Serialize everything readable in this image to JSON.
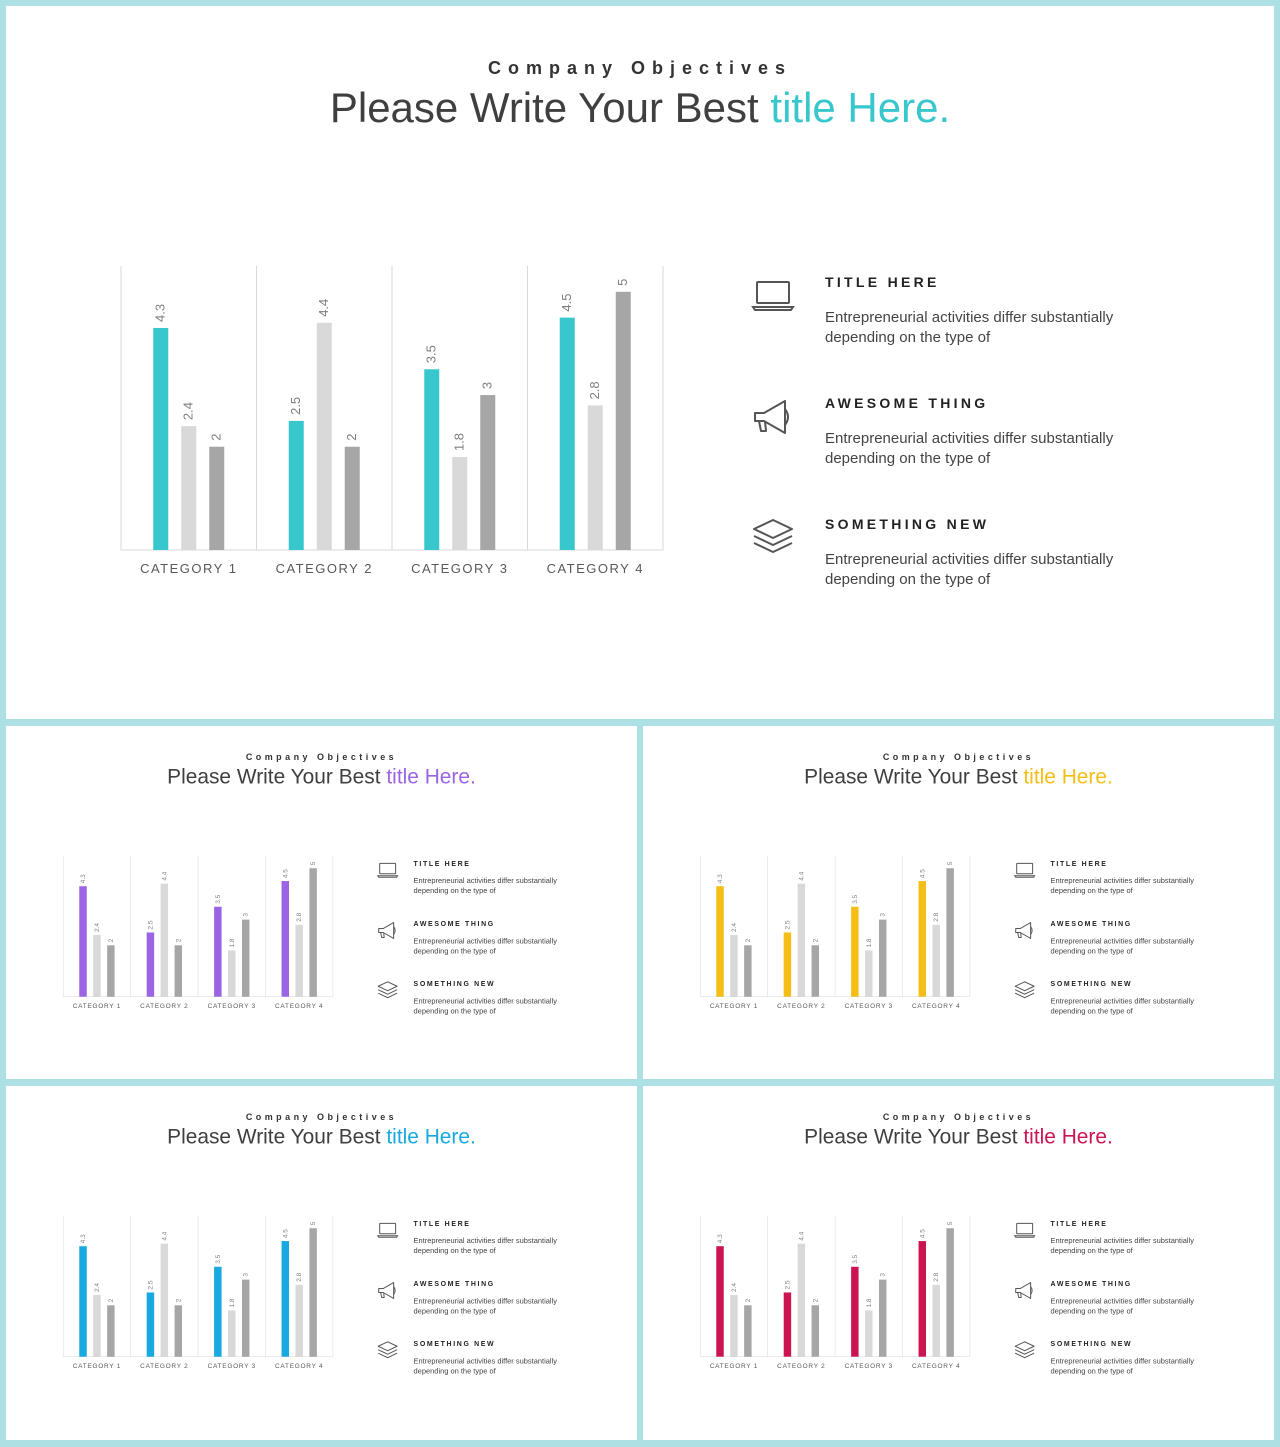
{
  "slides": [
    {
      "subtitle": "Company Objectives",
      "title_main": "Please Write Your Best",
      "title_accent": "title Here.",
      "accent_color": "#38c7cd"
    },
    {
      "subtitle": "Company Objectives",
      "title_main": "Please Write Your Best",
      "title_accent": "title Here.",
      "accent_color": "#9b64e4"
    },
    {
      "subtitle": "Company Objectives",
      "title_main": "Please Write Your Best",
      "title_accent": "title Here.",
      "accent_color": "#f4be16"
    },
    {
      "subtitle": "Company Objectives",
      "title_main": "Please Write Your Best",
      "title_accent": "title Here.",
      "accent_color": "#17a9df"
    },
    {
      "subtitle": "Company Objectives",
      "title_main": "Please Write Your Best",
      "title_accent": "title Here.",
      "accent_color": "#cc1550"
    }
  ],
  "info_items": [
    {
      "icon": "laptop-icon",
      "heading": "TITLE HERE",
      "text": "Entrepreneurial activities differ substantially depending on the type of"
    },
    {
      "icon": "megaphone-icon",
      "heading": "AWESOME THING",
      "text": "Entrepreneurial activities differ substantially depending on the type of"
    },
    {
      "icon": "layers-icon",
      "heading": "SOMETHING NEW",
      "text": "Entrepreneurial activities differ substantially depending on the type of"
    }
  ],
  "chart_data": {
    "type": "bar",
    "categories": [
      "CATEGORY 1",
      "CATEGORY 2",
      "CATEGORY 3",
      "CATEGORY 4"
    ],
    "series": [
      {
        "values": [
          4.3,
          2.5,
          3.5,
          4.5
        ],
        "color": "accent"
      },
      {
        "values": [
          2.4,
          4.4,
          1.8,
          2.8
        ],
        "color": "#d9d9d9"
      },
      {
        "values": [
          2,
          2,
          3,
          5
        ],
        "color": "#a6a6a6"
      }
    ],
    "ylim": [
      0,
      5.5
    ],
    "grid": "vertical separators",
    "legend": "none",
    "data_labels": "rotated above bars"
  }
}
